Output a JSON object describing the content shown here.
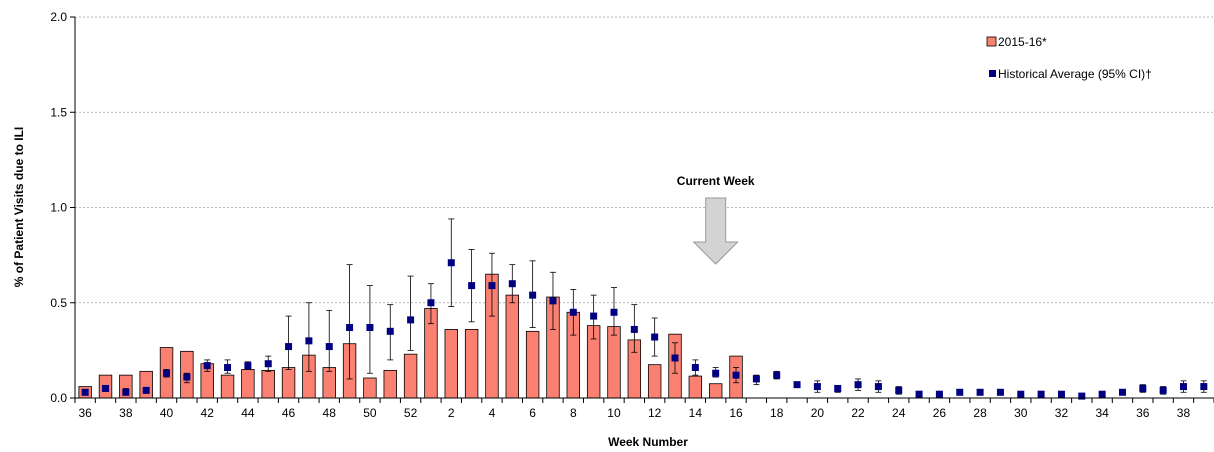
{
  "chart_data": {
    "type": "bar",
    "xlabel": "Week Number",
    "ylabel": "% of Patient Visits due to ILI",
    "ylim": [
      0,
      2.0
    ],
    "yticks": [
      "0.0",
      "0.5",
      "1.0",
      "1.5",
      "2.0"
    ],
    "grid": "horizontal",
    "legend_position": "top-right",
    "colors": {
      "bar_fill": "#FA8072",
      "bar_stroke": "#000000",
      "marker": "#000080",
      "arrow": "#D3D3D3",
      "grid": "#A0A0A0"
    },
    "categories": [
      "36",
      "37",
      "38",
      "39",
      "40",
      "41",
      "42",
      "43",
      "44",
      "45",
      "46",
      "47",
      "48",
      "49",
      "50",
      "51",
      "52",
      "1",
      "2",
      "3",
      "4",
      "5",
      "6",
      "7",
      "8",
      "9",
      "10",
      "11",
      "12",
      "13",
      "14",
      "15",
      "16",
      "17",
      "18",
      "19",
      "20",
      "21",
      "22",
      "23",
      "24",
      "25",
      "26",
      "27",
      "28",
      "29",
      "30",
      "31",
      "32",
      "33",
      "34",
      "35",
      "36",
      "37",
      "38",
      "39"
    ],
    "tick_labels": [
      "36",
      "",
      "38",
      "",
      "40",
      "",
      "42",
      "",
      "44",
      "",
      "46",
      "",
      "48",
      "",
      "50",
      "",
      "52",
      "",
      "2",
      "",
      "4",
      "",
      "6",
      "",
      "8",
      "",
      "10",
      "",
      "12",
      "",
      "14",
      "",
      "16",
      "",
      "18",
      "",
      "20",
      "",
      "22",
      "",
      "24",
      "",
      "26",
      "",
      "28",
      "",
      "30",
      "",
      "32",
      "",
      "34",
      "",
      "36",
      "",
      "38",
      ""
    ],
    "series": [
      {
        "name": "2015-16*",
        "kind": "bar",
        "values": [
          0.06,
          0.12,
          0.12,
          0.14,
          0.265,
          0.245,
          0.18,
          0.12,
          0.15,
          0.145,
          0.16,
          0.225,
          0.16,
          0.285,
          0.105,
          0.145,
          0.23,
          0.47,
          0.36,
          0.36,
          0.65,
          0.54,
          0.35,
          0.53,
          0.45,
          0.38,
          0.375,
          0.305,
          0.175,
          0.335,
          0.115,
          0.075,
          0.22,
          null,
          null,
          null,
          null,
          null,
          null,
          null,
          null,
          null,
          null,
          null,
          null,
          null,
          null,
          null,
          null,
          null,
          null,
          null,
          null,
          null,
          null,
          null
        ]
      },
      {
        "name": "Historical Average (95% CI)†",
        "kind": "point-errorbar",
        "values": [
          0.03,
          0.05,
          0.03,
          0.04,
          0.13,
          0.11,
          0.17,
          0.16,
          0.17,
          0.18,
          0.27,
          0.3,
          0.27,
          0.37,
          0.37,
          0.35,
          0.41,
          0.5,
          0.71,
          0.59,
          0.59,
          0.6,
          0.54,
          0.51,
          0.45,
          0.43,
          0.45,
          0.36,
          0.32,
          0.21,
          0.16,
          0.13,
          0.12,
          0.1,
          0.12,
          0.07,
          0.06,
          0.05,
          0.07,
          0.06,
          0.04,
          0.02,
          0.02,
          0.03,
          0.03,
          0.03,
          0.02,
          0.02,
          0.02,
          0.01,
          0.02,
          0.03,
          0.05,
          0.04,
          0.06,
          0.06
        ],
        "lower": [
          0.02,
          0.04,
          0.02,
          0.03,
          0.11,
          0.08,
          0.14,
          0.13,
          0.15,
          0.14,
          0.15,
          0.14,
          0.14,
          0.1,
          0.13,
          0.2,
          0.25,
          0.39,
          0.48,
          0.4,
          0.43,
          0.5,
          0.37,
          0.36,
          0.33,
          0.31,
          0.33,
          0.24,
          0.22,
          0.13,
          0.12,
          0.11,
          0.08,
          0.07,
          0.1,
          0.06,
          0.03,
          0.03,
          0.04,
          0.03,
          0.02,
          0.01,
          0.01,
          0.02,
          0.02,
          0.02,
          0.01,
          0.01,
          0.01,
          0.0,
          0.01,
          0.02,
          0.03,
          0.02,
          0.03,
          0.03
        ],
        "upper": [
          0.04,
          0.06,
          0.05,
          0.05,
          0.15,
          0.13,
          0.2,
          0.2,
          0.19,
          0.22,
          0.43,
          0.5,
          0.46,
          0.7,
          0.59,
          0.49,
          0.64,
          0.6,
          0.94,
          0.78,
          0.76,
          0.7,
          0.72,
          0.66,
          0.57,
          0.54,
          0.58,
          0.49,
          0.42,
          0.29,
          0.2,
          0.16,
          0.16,
          0.12,
          0.14,
          0.08,
          0.09,
          0.06,
          0.1,
          0.09,
          0.06,
          0.03,
          0.03,
          0.04,
          0.04,
          0.04,
          0.03,
          0.03,
          0.03,
          0.02,
          0.03,
          0.04,
          0.07,
          0.06,
          0.09,
          0.09
        ]
      }
    ],
    "annotation": {
      "text": "Current Week",
      "category_index": 31
    }
  }
}
